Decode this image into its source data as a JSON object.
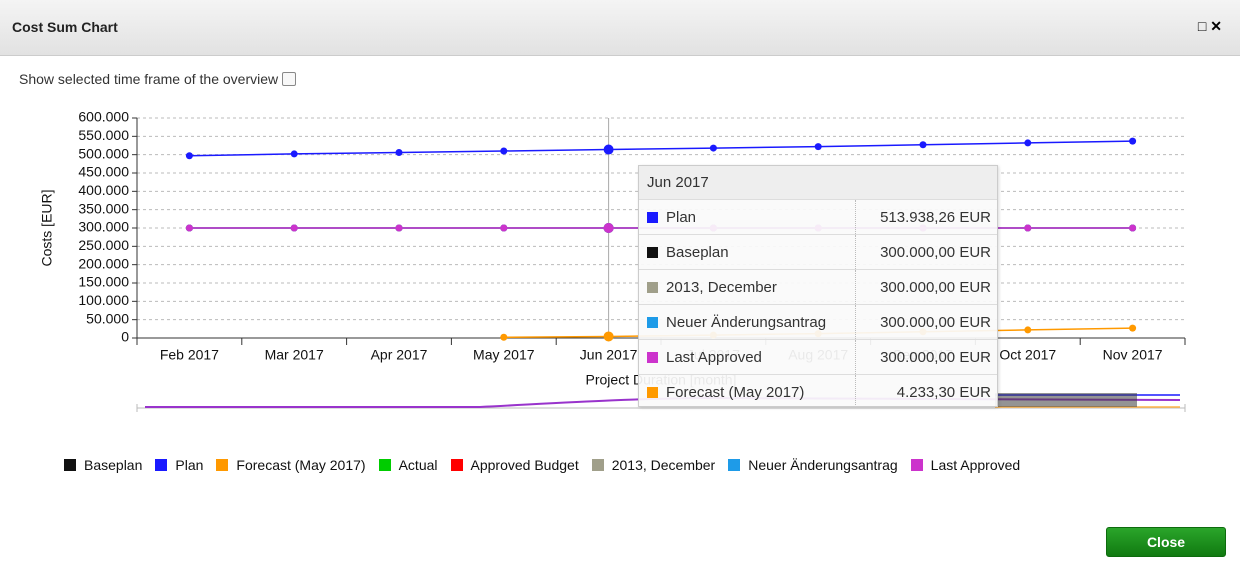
{
  "dialog": {
    "title": "Cost Sum Chart",
    "checkbox_label": "Show selected time frame of the overview",
    "close_button": "Close"
  },
  "chart_data": {
    "type": "line",
    "y_label": "Costs [EUR]",
    "x_label": "Project Duration [month]",
    "categories": [
      "Feb 2017",
      "Mar 2017",
      "Apr 2017",
      "May 2017",
      "Jun 2017",
      "Jul 2017",
      "Aug 2017",
      "Sep 2017",
      "Oct 2017",
      "Nov 2017"
    ],
    "ylim": [
      0,
      600000
    ],
    "yticks": [
      0,
      {
        "value": 50000,
        "label": "50.000"
      },
      {
        "value": 100000,
        "label": "100.000"
      },
      {
        "value": 150000,
        "label": "150.000"
      },
      {
        "value": 200000,
        "label": "200.000"
      },
      {
        "value": 250000,
        "label": "250.000"
      },
      {
        "value": 300000,
        "label": "300.000"
      },
      {
        "value": 350000,
        "label": "350.000"
      },
      {
        "value": 400000,
        "label": "400.000"
      },
      {
        "value": 450000,
        "label": "450.000"
      },
      {
        "value": 500000,
        "label": "500.000"
      },
      {
        "value": 550000,
        "label": "550.000"
      },
      {
        "value": 600000,
        "label": "600.000"
      }
    ],
    "grid": true,
    "series": [
      {
        "name": "Baseplan",
        "color": "#111111",
        "values": [
          300000,
          300000,
          300000,
          300000,
          300000,
          300000,
          300000,
          300000,
          300000,
          300000
        ]
      },
      {
        "name": "Plan",
        "color": "#1a1aff",
        "values": [
          497000,
          502000,
          506000,
          510000,
          513938.26,
          518000,
          522000,
          527000,
          532000,
          537000
        ]
      },
      {
        "name": "Forecast (May 2017)",
        "color": "#ff9900",
        "values": [
          null,
          null,
          null,
          2000,
          4233.3,
          8000,
          12000,
          17000,
          22000,
          27000
        ]
      },
      {
        "name": "Actual",
        "color": "#00cc00",
        "values": [
          null,
          null,
          null,
          null,
          null,
          null,
          null,
          null,
          null,
          null
        ]
      },
      {
        "name": "Approved Budget",
        "color": "#ff0000",
        "values": [
          null,
          null,
          null,
          null,
          null,
          null,
          null,
          null,
          null,
          null
        ]
      },
      {
        "name": "2013, December",
        "color": "#a09f8a",
        "values": [
          300000,
          300000,
          300000,
          300000,
          300000,
          300000,
          300000,
          300000,
          300000,
          300000
        ]
      },
      {
        "name": "Neuer Änderungsantrag",
        "color": "#1e9be8",
        "values": [
          300000,
          300000,
          300000,
          300000,
          300000,
          300000,
          300000,
          300000,
          300000,
          300000
        ]
      },
      {
        "name": "Last Approved",
        "color": "#cc33cc",
        "values": [
          300000,
          300000,
          300000,
          300000,
          300000,
          300000,
          300000,
          300000,
          300000,
          300000
        ]
      }
    ]
  },
  "tooltip": {
    "title": "Jun 2017",
    "rows": [
      {
        "name": "Plan",
        "color": "#1a1aff",
        "value": "513.938,26 EUR"
      },
      {
        "name": "Baseplan",
        "color": "#111111",
        "value": "300.000,00 EUR"
      },
      {
        "name": "2013, December",
        "color": "#a09f8a",
        "value": "300.000,00 EUR"
      },
      {
        "name": "Neuer Änderungsantrag",
        "color": "#1e9be8",
        "value": "300.000,00 EUR"
      },
      {
        "name": "Last Approved",
        "color": "#cc33cc",
        "value": "300.000,00 EUR"
      },
      {
        "name": "Forecast (May 2017)",
        "color": "#ff9900",
        "value": "4.233,30 EUR"
      }
    ]
  }
}
